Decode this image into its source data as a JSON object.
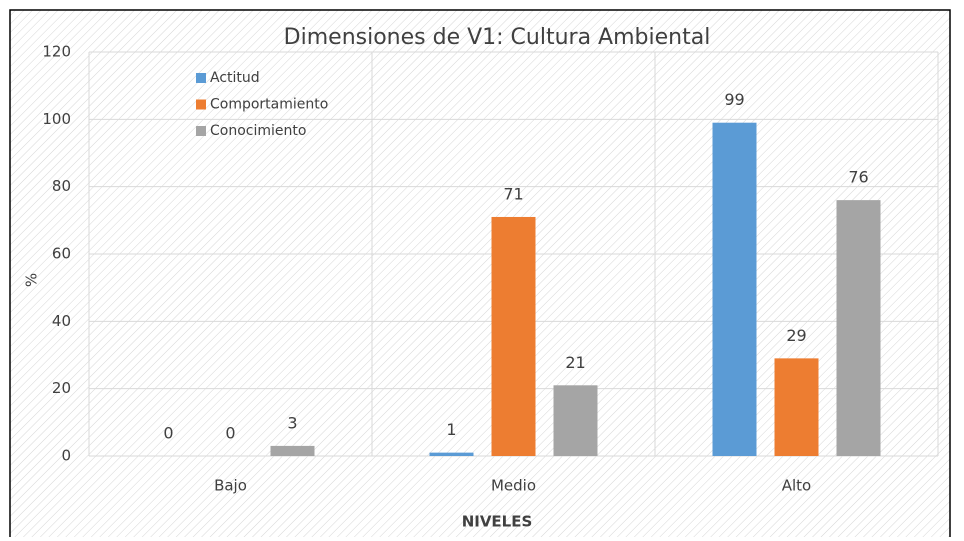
{
  "chart_data": {
    "type": "bar",
    "title": "Dimensiones de V1: Cultura Ambiental",
    "x_label": "NIVELES",
    "y_label": "%",
    "categories": [
      "Bajo",
      "Medio",
      "Alto"
    ],
    "series": [
      {
        "name": "Actitud",
        "color": "#5b9bd5",
        "values": [
          0,
          1,
          99
        ]
      },
      {
        "name": "Comportamiento",
        "color": "#ed7d31",
        "values": [
          0,
          71,
          29
        ]
      },
      {
        "name": "Conocimiento",
        "color": "#a5a5a5",
        "values": [
          3,
          21,
          76
        ]
      }
    ],
    "ylim": [
      0,
      120
    ],
    "yticks": [
      0,
      20,
      40,
      60,
      80,
      100,
      120
    ],
    "grid": true,
    "legend": "top-left"
  }
}
